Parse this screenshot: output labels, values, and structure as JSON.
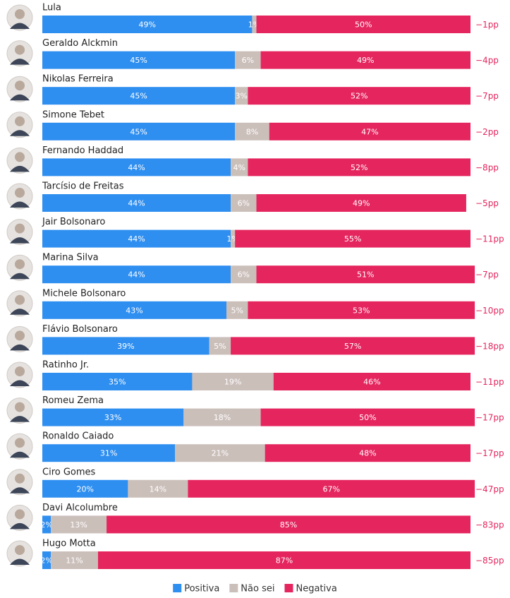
{
  "chart_data": {
    "type": "stacked-bar",
    "categories": [
      "Lula",
      "Geraldo Alckmin",
      "Nikolas Ferreira",
      "Simone Tebet",
      "Fernando Haddad",
      "Tarcísio de Freitas",
      "Jair Bolsonaro",
      "Marina Silva",
      "Michele Bolsonaro",
      "Flávio Bolsonaro",
      "Ratinho Jr.",
      "Romeu Zema",
      "Ronaldo Caiado",
      "Ciro Gomes",
      "Davi Alcolumbre",
      "Hugo Motta"
    ],
    "xlim": [
      0,
      100
    ],
    "series": [
      {
        "name": "Positiva",
        "color": "#2f8ff0",
        "values": [
          49,
          45,
          45,
          45,
          44,
          44,
          44,
          44,
          43,
          39,
          35,
          33,
          31,
          20,
          2,
          2
        ],
        "value_labels": [
          "49%",
          "45%",
          "45%",
          "45%",
          "44%",
          "44%",
          "44%",
          "44%",
          "43%",
          "39%",
          "35%",
          "33%",
          "31%",
          "20%",
          "2%",
          "2%"
        ]
      },
      {
        "name": "Não sei",
        "color": "#cbbfba",
        "values": [
          1,
          6,
          3,
          8,
          4,
          6,
          1,
          6,
          5,
          5,
          19,
          18,
          21,
          14,
          13,
          11
        ],
        "value_labels": [
          "1%",
          "6%",
          "3%",
          "8%",
          "4%",
          "6%",
          "1%",
          "6%",
          "5%",
          "5%",
          "19%",
          "18%",
          "21%",
          "14%",
          "13%",
          "11%"
        ]
      },
      {
        "name": "Negativa",
        "color": "#e5255e",
        "values": [
          50,
          49,
          52,
          47,
          52,
          49,
          55,
          51,
          53,
          57,
          46,
          50,
          48,
          67,
          85,
          87
        ],
        "value_labels": [
          "50%",
          "49%",
          "52%",
          "47%",
          "52%",
          "49%",
          "55%",
          "51%",
          "53%",
          "57%",
          "46%",
          "50%",
          "48%",
          "67%",
          "85%",
          "87%"
        ]
      }
    ],
    "annotations": [
      "−1pp",
      "−4pp",
      "−7pp",
      "−2pp",
      "−8pp",
      "−5pp",
      "−11pp",
      "−7pp",
      "−10pp",
      "−18pp",
      "−11pp",
      "−17pp",
      "−17pp",
      "−47pp",
      "−83pp",
      "−85pp"
    ],
    "annotation_color": "#e5255e",
    "legend": "bottom"
  }
}
